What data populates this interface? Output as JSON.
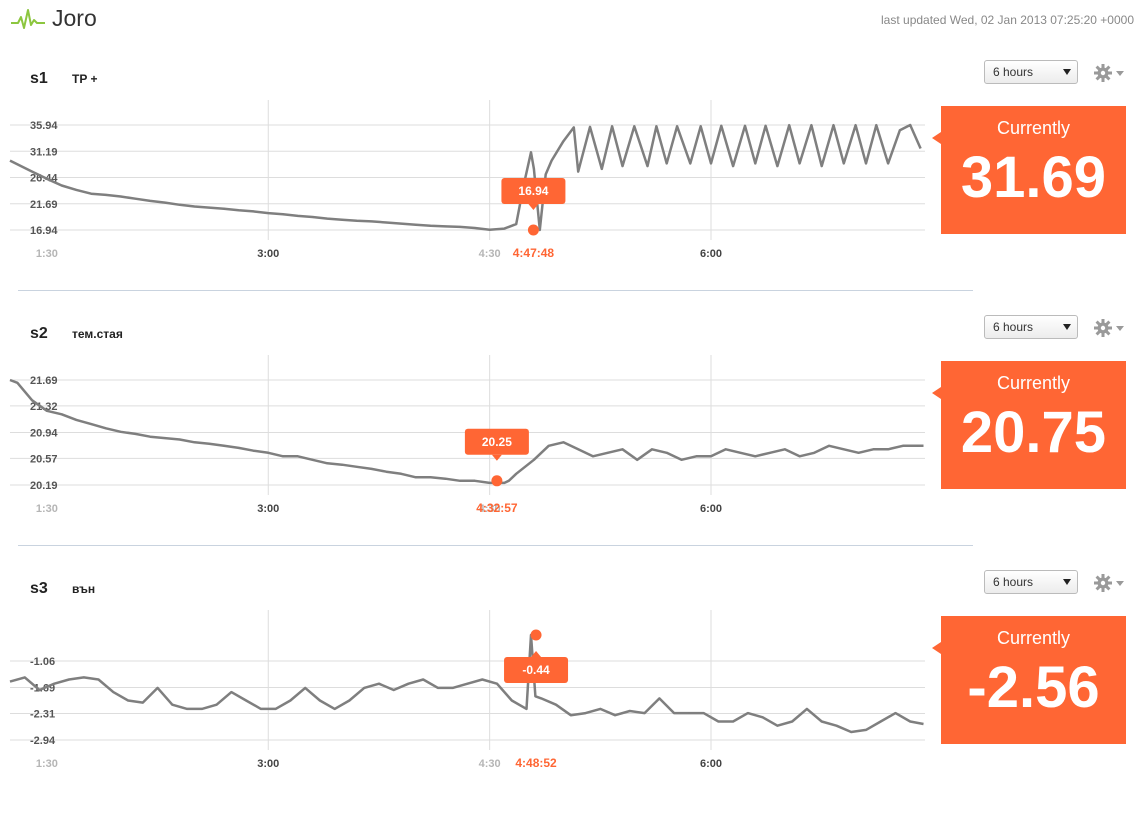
{
  "app": {
    "title": "Joro",
    "last_updated": "last updated Wed, 02 Jan 2013 07:25:20 +0000"
  },
  "icons": {
    "logo": "pulse-line-icon",
    "settings": "gear-icon",
    "dropdown": "triangle-down-icon"
  },
  "colors": {
    "accent": "#ff6634",
    "series": "#7f7f7f",
    "grid": "#dddddd",
    "logo": "#8cc63f"
  },
  "panels": [
    {
      "id": "s1",
      "label": "TP +",
      "range_selected": "6 hours",
      "current_label": "Currently",
      "current_value": "31.69",
      "y_ticks": [
        "35.94",
        "31.19",
        "26.44",
        "21.69",
        "16.94"
      ],
      "x_ticks": [
        "1:30",
        "3:00",
        "4:30",
        "6:00"
      ],
      "hover": {
        "time": "4:47:48",
        "value": "16.94"
      }
    },
    {
      "id": "s2",
      "label": "тем.стая",
      "range_selected": "6 hours",
      "current_label": "Currently",
      "current_value": "20.75",
      "y_ticks": [
        "21.69",
        "21.32",
        "20.94",
        "20.57",
        "20.19"
      ],
      "x_ticks": [
        "1:30",
        "3:00",
        "4:30",
        "6:00"
      ],
      "hover": {
        "time": "4:32:57",
        "value": "20.25"
      }
    },
    {
      "id": "s3",
      "label": "вън",
      "range_selected": "6 hours",
      "current_label": "Currently",
      "current_value": "-2.56",
      "y_ticks": [
        "-1.06",
        "-1.69",
        "-2.31",
        "-2.94"
      ],
      "x_ticks": [
        "1:30",
        "3:00",
        "4:30",
        "6:00"
      ],
      "hover": {
        "time": "4:48:52",
        "value": "-0.44"
      }
    }
  ],
  "chart_data": [
    {
      "type": "line",
      "x_unit": "hours",
      "xlim": [
        1.25,
        7.45
      ],
      "ylim": [
        16.94,
        35.94
      ],
      "x": [
        1.25,
        1.4,
        1.5,
        1.6,
        1.7,
        1.8,
        1.9,
        2.0,
        2.1,
        2.2,
        2.3,
        2.4,
        2.5,
        2.6,
        2.7,
        2.8,
        2.9,
        3.0,
        3.1,
        3.2,
        3.3,
        3.4,
        3.5,
        3.6,
        3.7,
        3.8,
        3.9,
        4.0,
        4.1,
        4.2,
        4.3,
        4.4,
        4.5,
        4.6,
        4.68,
        4.73,
        4.78,
        4.8,
        4.84,
        4.88,
        4.92,
        5.0,
        5.07,
        5.1,
        5.18,
        5.26,
        5.33,
        5.4,
        5.48,
        5.57,
        5.63,
        5.7,
        5.77,
        5.86,
        5.93,
        6.0,
        6.07,
        6.15,
        6.23,
        6.3,
        6.37,
        6.45,
        6.53,
        6.6,
        6.68,
        6.75,
        6.83,
        6.9,
        6.98,
        7.05,
        7.12,
        7.2,
        7.28,
        7.35,
        7.42
      ],
      "y": [
        29.5,
        27.5,
        26.2,
        25.0,
        24.2,
        23.5,
        23.3,
        23.0,
        22.6,
        22.2,
        21.9,
        21.5,
        21.2,
        21.0,
        20.8,
        20.5,
        20.3,
        20.0,
        19.8,
        19.5,
        19.3,
        19.0,
        18.8,
        18.6,
        18.5,
        18.3,
        18.1,
        17.9,
        17.7,
        17.6,
        17.5,
        17.3,
        17.0,
        17.2,
        18.0,
        25.0,
        31.0,
        28.0,
        16.94,
        27.0,
        29.5,
        33.0,
        35.5,
        27.5,
        35.6,
        28.0,
        35.7,
        28.5,
        35.7,
        28.5,
        35.7,
        29.0,
        35.7,
        29.0,
        35.7,
        29.0,
        35.8,
        28.5,
        35.8,
        29.0,
        35.8,
        28.5,
        35.9,
        29.0,
        35.9,
        28.5,
        35.9,
        29.0,
        35.9,
        29.0,
        35.9,
        29.0,
        35.0,
        35.94,
        31.69
      ]
    },
    {
      "type": "line",
      "x_unit": "hours",
      "xlim": [
        1.25,
        7.45
      ],
      "ylim": [
        20.19,
        21.69
      ],
      "x": [
        1.25,
        1.3,
        1.4,
        1.5,
        1.6,
        1.7,
        1.8,
        1.9,
        2.0,
        2.1,
        2.2,
        2.3,
        2.4,
        2.5,
        2.6,
        2.7,
        2.8,
        2.9,
        3.0,
        3.1,
        3.2,
        3.3,
        3.4,
        3.5,
        3.6,
        3.7,
        3.8,
        3.9,
        4.0,
        4.1,
        4.2,
        4.3,
        4.4,
        4.5,
        4.6,
        4.63,
        4.68,
        4.8,
        4.9,
        5.0,
        5.1,
        5.2,
        5.3,
        5.4,
        5.5,
        5.6,
        5.7,
        5.8,
        5.9,
        6.0,
        6.1,
        6.2,
        6.3,
        6.4,
        6.5,
        6.6,
        6.7,
        6.8,
        6.9,
        7.0,
        7.1,
        7.2,
        7.3,
        7.4,
        7.44
      ],
      "y": [
        21.69,
        21.65,
        21.4,
        21.25,
        21.2,
        21.12,
        21.06,
        21.0,
        20.95,
        20.92,
        20.88,
        20.86,
        20.84,
        20.8,
        20.78,
        20.75,
        20.72,
        20.68,
        20.65,
        20.6,
        20.6,
        20.55,
        20.5,
        20.48,
        20.45,
        20.42,
        20.38,
        20.35,
        20.3,
        20.3,
        20.28,
        20.25,
        20.25,
        20.22,
        20.22,
        20.25,
        20.35,
        20.55,
        20.75,
        20.8,
        20.7,
        20.6,
        20.65,
        20.7,
        20.55,
        20.7,
        20.65,
        20.55,
        20.6,
        20.6,
        20.7,
        20.65,
        20.6,
        20.65,
        20.7,
        20.6,
        20.65,
        20.75,
        20.7,
        20.65,
        20.7,
        20.7,
        20.75,
        20.75,
        20.75
      ]
    },
    {
      "type": "line",
      "x_unit": "hours",
      "xlim": [
        1.25,
        7.45
      ],
      "ylim": [
        -2.94,
        -0.44
      ],
      "x": [
        1.25,
        1.35,
        1.45,
        1.55,
        1.65,
        1.75,
        1.85,
        1.95,
        2.05,
        2.15,
        2.25,
        2.35,
        2.45,
        2.55,
        2.65,
        2.75,
        2.85,
        2.95,
        3.05,
        3.15,
        3.25,
        3.35,
        3.45,
        3.55,
        3.65,
        3.75,
        3.85,
        3.95,
        4.05,
        4.15,
        4.25,
        4.35,
        4.45,
        4.55,
        4.65,
        4.75,
        4.78,
        4.81,
        4.85,
        4.95,
        5.05,
        5.15,
        5.25,
        5.35,
        5.45,
        5.55,
        5.65,
        5.75,
        5.85,
        5.95,
        6.05,
        6.15,
        6.25,
        6.35,
        6.45,
        6.55,
        6.65,
        6.75,
        6.85,
        6.95,
        7.05,
        7.15,
        7.25,
        7.35,
        7.44
      ],
      "y": [
        -1.55,
        -1.45,
        -1.75,
        -1.6,
        -1.5,
        -1.45,
        -1.5,
        -1.8,
        -2.0,
        -2.05,
        -1.7,
        -2.1,
        -2.2,
        -2.2,
        -2.1,
        -1.8,
        -2.0,
        -2.2,
        -2.2,
        -2.0,
        -1.7,
        -2.0,
        -2.2,
        -2.0,
        -1.7,
        -1.6,
        -1.75,
        -1.6,
        -1.5,
        -1.7,
        -1.7,
        -1.6,
        -1.5,
        -1.6,
        -2.0,
        -2.2,
        -0.44,
        -1.9,
        -1.95,
        -2.1,
        -2.35,
        -2.3,
        -2.2,
        -2.35,
        -2.25,
        -2.3,
        -1.95,
        -2.3,
        -2.3,
        -2.3,
        -2.5,
        -2.5,
        -2.3,
        -2.4,
        -2.6,
        -2.5,
        -2.2,
        -2.5,
        -2.6,
        -2.75,
        -2.7,
        -2.5,
        -2.3,
        -2.5,
        -2.56
      ]
    }
  ]
}
